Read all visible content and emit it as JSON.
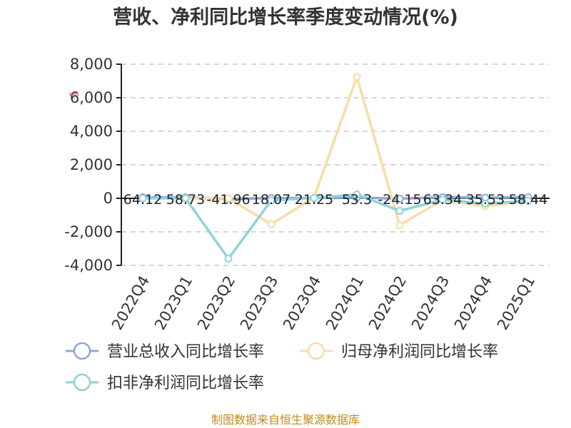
{
  "chart_data": {
    "type": "line",
    "title": "营收、净利同比增长率季度变动情况(%)",
    "categories": [
      "2022Q4",
      "2023Q1",
      "2023Q2",
      "2023Q3",
      "2023Q4",
      "2024Q1",
      "2024Q2",
      "2024Q3",
      "2024Q4",
      "2025Q1"
    ],
    "ylim": [
      -4000,
      8000
    ],
    "yticks": [
      -4000,
      -2000,
      0,
      2000,
      4000,
      6000,
      8000
    ],
    "ytick_labels": [
      "-4,000",
      "-2,000",
      "0",
      "2,000",
      "4,000",
      "6,000",
      "8,000"
    ],
    "grid": true,
    "legend_position": "bottom",
    "series": [
      {
        "name": "营业总收入同比增长率",
        "color": "#8fa8d8",
        "values": [
          64.12,
          58.73,
          -41.96,
          18.07,
          21.25,
          53.3,
          -24.15,
          63.34,
          35.53,
          58.44
        ],
        "labels": [
          "64.12",
          "58.73",
          "-41.96",
          "18.07",
          "21.25",
          "53.3",
          "-24.15",
          "63.34",
          "35.53",
          "58.44"
        ]
      },
      {
        "name": "归母净利润同比增长率",
        "color": "#f9dca6",
        "values": [
          0,
          0,
          0,
          -1550,
          50,
          7250,
          -1600,
          -100,
          -480,
          -150
        ]
      },
      {
        "name": "扣非净利润同比增长率",
        "color": "#8fd3d7",
        "values": [
          0,
          0,
          -3600,
          -130,
          20,
          230,
          -750,
          -80,
          -320,
          -150
        ]
      }
    ],
    "y_marker": "%",
    "source": "制图数据来自恒生聚源数据库"
  }
}
